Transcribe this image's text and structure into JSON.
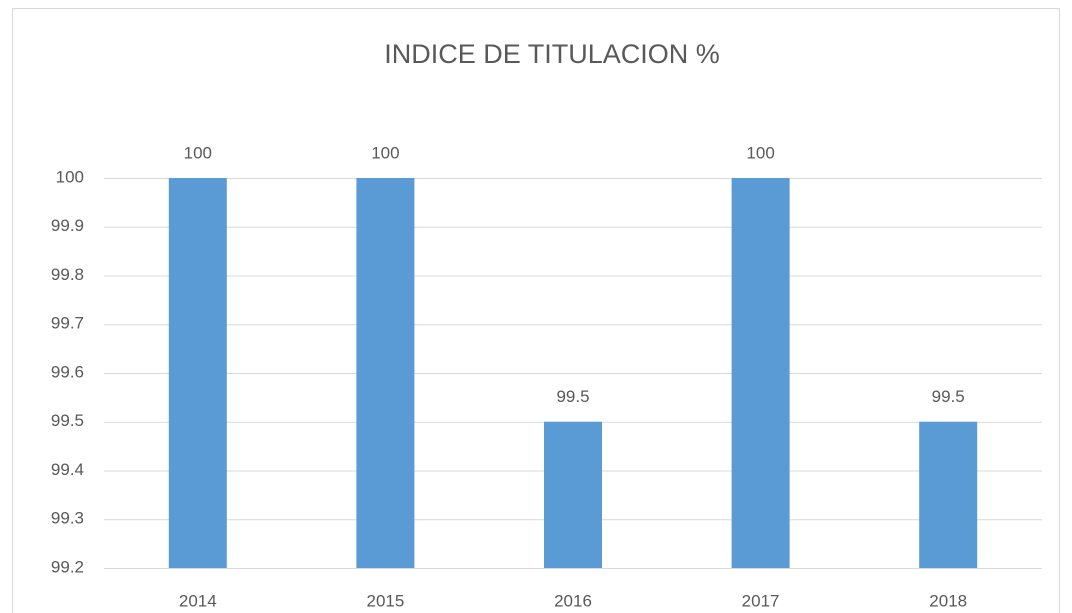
{
  "chart_data": {
    "type": "bar",
    "title": "INDICE DE TITULACION %",
    "categories": [
      "2014",
      "2015",
      "2016",
      "2017",
      "2018"
    ],
    "values": [
      100,
      100,
      99.5,
      100,
      99.5
    ],
    "color": "#5b9bd5",
    "ylim": [
      99.2,
      100
    ],
    "yticks": [
      99.2,
      99.3,
      99.4,
      99.5,
      99.6,
      99.7,
      99.8,
      99.9,
      100
    ],
    "grid": true,
    "data_labels": true
  }
}
